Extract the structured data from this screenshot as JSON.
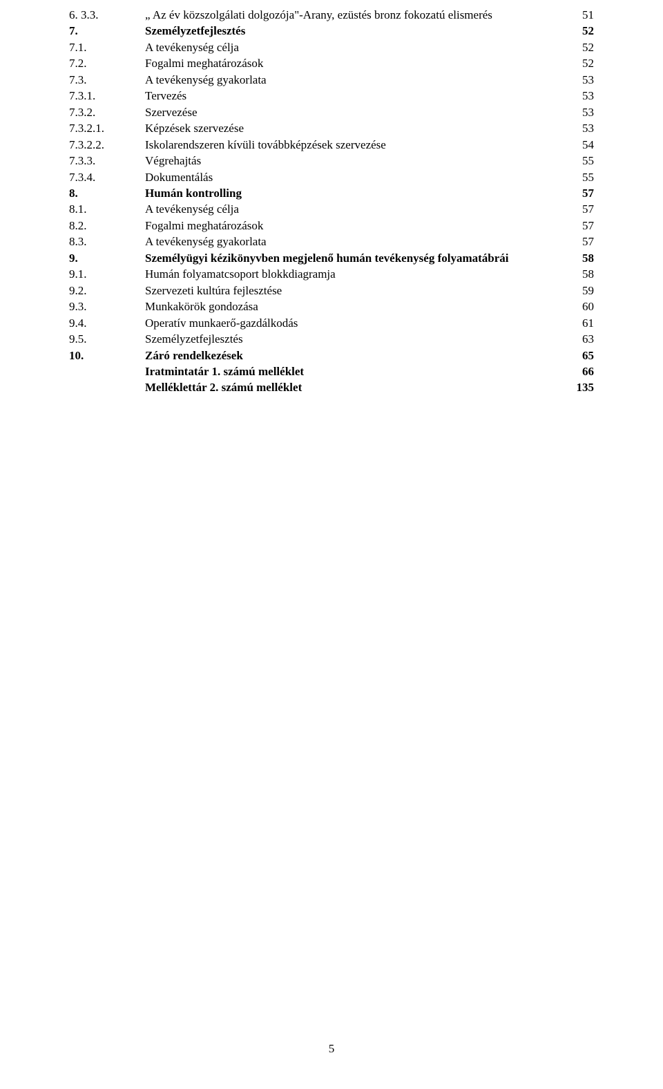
{
  "toc": [
    {
      "num": "6. 3.3.",
      "title": "„ Az év közszolgálati dolgozója\"-Arany, ezüstés bronz fokozatú elismerés",
      "page": "51",
      "bold": false
    },
    {
      "num": "7.",
      "title": "Személyzetfejlesztés",
      "page": "52",
      "bold": true
    },
    {
      "num": "7.1.",
      "title": "A tevékenység célja",
      "page": "52",
      "bold": false
    },
    {
      "num": "7.2.",
      "title": "Fogalmi meghatározások",
      "page": "52",
      "bold": false
    },
    {
      "num": "7.3.",
      "title": "A tevékenység gyakorlata",
      "page": "53",
      "bold": false
    },
    {
      "num": "7.3.1.",
      "title": "Tervezés",
      "page": "53",
      "bold": false
    },
    {
      "num": "7.3.2.",
      "title": "Szervezése",
      "page": "53",
      "bold": false
    },
    {
      "num": "7.3.2.1.",
      "title": "Képzések szervezése",
      "page": "53",
      "bold": false
    },
    {
      "num": "7.3.2.2.",
      "title": "Iskolarendszeren kívüli továbbképzések szervezése",
      "page": "54",
      "bold": false
    },
    {
      "num": "7.3.3.",
      "title": "Végrehajtás",
      "page": "55",
      "bold": false
    },
    {
      "num": "7.3.4.",
      "title": "Dokumentálás",
      "page": "55",
      "bold": false
    },
    {
      "num": "8.",
      "title": "Humán kontrolling",
      "page": "57",
      "bold": true
    },
    {
      "num": "8.1.",
      "title": "A tevékenység célja",
      "page": "57",
      "bold": false
    },
    {
      "num": "8.2.",
      "title": "Fogalmi meghatározások",
      "page": "57",
      "bold": false
    },
    {
      "num": "8.3.",
      "title": "A tevékenység gyakorlata",
      "page": "57",
      "bold": false
    },
    {
      "num": "9.",
      "title": "Személyügyi kézikönyvben megjelenő humán tevékenység folyamatábrái",
      "page": "58",
      "bold": true
    },
    {
      "num": "9.1.",
      "title": "Humán folyamatcsoport blokkdiagramja",
      "page": "58",
      "bold": false
    },
    {
      "num": "9.2.",
      "title": "Szervezeti kultúra fejlesztése",
      "page": "59",
      "bold": false
    },
    {
      "num": "9.3.",
      "title": "Munkakörök gondozása",
      "page": "60",
      "bold": false
    },
    {
      "num": "9.4.",
      "title": "Operatív munkaerő-gazdálkodás",
      "page": "61",
      "bold": false
    },
    {
      "num": "9.5.",
      "title": "Személyzetfejlesztés",
      "page": "63",
      "bold": false
    },
    {
      "num": "10.",
      "title": "Záró rendelkezések",
      "page": "65",
      "bold": true
    },
    {
      "num": "",
      "title": "Iratmintatár 1. számú melléklet",
      "page": "66",
      "bold": true
    },
    {
      "num": "",
      "title": "Melléklettár 2. számú melléklet",
      "page": "135",
      "bold": true
    }
  ],
  "footer_page_number": "5",
  "colors": {
    "text": "#000000",
    "background": "#ffffff"
  },
  "typography": {
    "font_family": "Times New Roman",
    "font_size_pt": 12
  }
}
